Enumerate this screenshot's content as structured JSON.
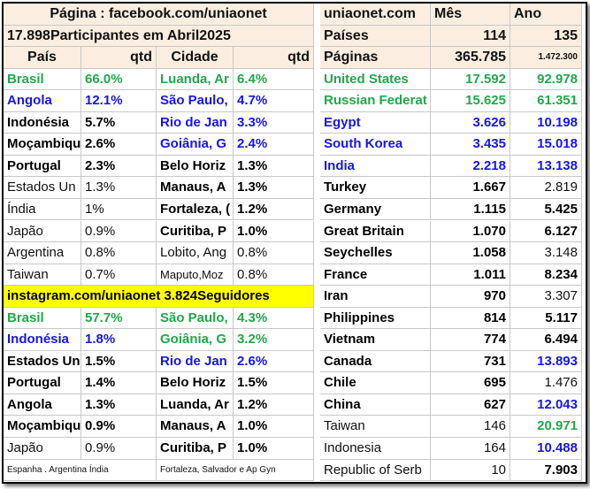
{
  "header": {
    "facebook": "Página : facebook.com/uniaonet",
    "site": "uniaonet.com",
    "month": "Mês",
    "year": "Ano",
    "participants": "17.898Participantes em Abril2025",
    "countries_label": "Países",
    "countries_month": "114",
    "countries_year": "135",
    "pages_label": "Páginas",
    "pages_month": "365.785",
    "pages_year": "1.472.300"
  },
  "left_columns": [
    "País",
    "qtd",
    "Cidade",
    "qtd"
  ],
  "facebook_rows": [
    [
      "Brasil",
      "66.0%",
      "Luanda, Ar",
      "6.4%"
    ],
    [
      "Angola",
      "12.1%",
      "São Paulo,",
      "4.7%"
    ],
    [
      "Indonésia",
      "5.7%",
      "Rio de Jan",
      "3.3%"
    ],
    [
      "Moçambique",
      "2.6%",
      "Goiânia, G",
      "2.4%"
    ],
    [
      "Portugal",
      "2.3%",
      "Belo Horiz",
      "1.3%"
    ],
    [
      "Estados Un",
      "1.3%",
      "Manaus, A",
      "1.3%"
    ],
    [
      "Índia",
      "1%",
      "Fortaleza, (",
      "1.2%"
    ],
    [
      "Japão",
      "0.9%",
      "Curitiba, P",
      "1.0%"
    ],
    [
      "Argentina",
      "0.8%",
      "Lobito, Ang",
      "0.8%"
    ],
    [
      "Taiwan",
      "0.7%",
      "Maputo,Moz",
      "0.8%"
    ]
  ],
  "instagram_title": "instagram.com/uniaonet 3.824Seguidores",
  "instagram_rows": [
    [
      "Brasil",
      "57.7%",
      "São Paulo,",
      "4.3%"
    ],
    [
      "Indonésia",
      "1.8%",
      "Goiânia, G",
      "3.2%"
    ],
    [
      "Estados Un",
      "1.5%",
      "Rio de Jan",
      "2.6%"
    ],
    [
      "Portugal",
      "1.4%",
      "Belo Horiz",
      "1.5%"
    ],
    [
      "Angola",
      "1.3%",
      "Luanda, Ar",
      "1.2%"
    ],
    [
      "Moçambique",
      "0.9%",
      "Manaus, A",
      "1.0%"
    ],
    [
      "Japão",
      "0.9%",
      "Curitiba, P",
      "1.0%"
    ]
  ],
  "footer": [
    "Espanha . Argentina Índia",
    "Fortaleza, Salvador e Ap Gyn"
  ],
  "right_rows": [
    [
      "United States",
      "17.592",
      "92.978"
    ],
    [
      "Russian Federat",
      "15.625",
      "61.351"
    ],
    [
      "Egypt",
      "3.626",
      "10.198"
    ],
    [
      "South Korea",
      "3.435",
      "15.018"
    ],
    [
      "India",
      "2.218",
      "13.138"
    ],
    [
      "Turkey",
      "1.667",
      "2.819"
    ],
    [
      "Germany",
      "1.115",
      "5.425"
    ],
    [
      "Great Britain",
      "1.070",
      "6.127"
    ],
    [
      "Seychelles",
      "1.058",
      "3.148"
    ],
    [
      "France",
      "1.011",
      "8.234"
    ],
    [
      "Iran",
      "970",
      "3.307"
    ],
    [
      "Philippines",
      "814",
      "5.117"
    ],
    [
      "Vietnam",
      "774",
      "6.494"
    ],
    [
      "Canada",
      "731",
      "13.893"
    ],
    [
      "Chile",
      "695",
      "1.476"
    ],
    [
      "China",
      "627",
      "12.043"
    ],
    [
      "Taiwan",
      "146",
      "20.971"
    ],
    [
      "Indonesia",
      "164",
      "10.488"
    ],
    [
      "Republic of Serb",
      "10",
      "7.903"
    ]
  ]
}
